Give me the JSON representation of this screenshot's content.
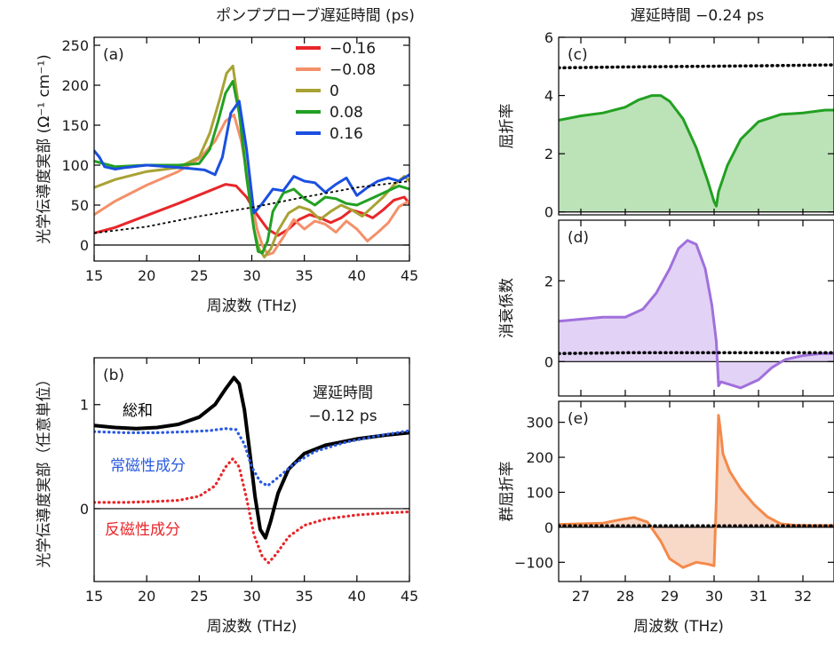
{
  "figure": {
    "title_left": "ポンププローブ遅延時間 (ps)",
    "title_right": "遅延時間 −0.24 ps"
  },
  "colors": {
    "red": "#e8262a",
    "salmon": "#f4906a",
    "olive": "#a8a234",
    "green": "#22a022",
    "blue": "#1a4fe0",
    "purple": "#a070dc",
    "orange": "#f4894a",
    "dotted_blue": "#2a5ae0",
    "dotted_red": "#e8262a",
    "fill_green": "#b8e0b4",
    "fill_purple": "#e0d0f4",
    "fill_orange": "#f8d6c4"
  },
  "chart_data": [
    {
      "id": "a",
      "type": "line",
      "panel_label": "(a)",
      "xlabel": "周波数 (THz)",
      "ylabel": "光学伝導度実部 (Ω⁻¹ cm⁻¹)",
      "xlim": [
        15,
        45
      ],
      "ylim": [
        -20,
        260
      ],
      "xticks": [
        15,
        20,
        25,
        30,
        35,
        40,
        45
      ],
      "yticks": [
        0,
        50,
        100,
        150,
        200,
        250
      ],
      "legend": "top-center",
      "series": [
        {
          "name": "−0.16",
          "color": "red",
          "x": [
            15,
            17,
            20,
            23,
            26,
            27.5,
            28.5,
            29.5,
            30.5,
            31.5,
            32.5,
            33.5,
            34.5,
            35.5,
            36.5,
            37.5,
            38.5,
            39.5,
            40.5,
            41.5,
            42.5,
            43.5,
            44.5,
            45
          ],
          "y": [
            15,
            22,
            37,
            52,
            68,
            76,
            74,
            60,
            38,
            20,
            12,
            20,
            32,
            38,
            34,
            28,
            34,
            44,
            40,
            34,
            44,
            56,
            60,
            52
          ]
        },
        {
          "name": "−0.08",
          "color": "salmon",
          "x": [
            15,
            17,
            20,
            23,
            25,
            26.5,
            27.5,
            28.3,
            29,
            29.8,
            30.5,
            31,
            31.5,
            32,
            33,
            34,
            35,
            36,
            37,
            38,
            39,
            40,
            41,
            42,
            43,
            44,
            45
          ],
          "y": [
            38,
            55,
            75,
            92,
            108,
            130,
            155,
            163,
            130,
            70,
            20,
            0,
            -12,
            -10,
            10,
            32,
            20,
            30,
            26,
            16,
            30,
            20,
            5,
            16,
            28,
            48,
            55
          ]
        },
        {
          "name": "0",
          "color": "olive",
          "x": [
            15,
            17,
            20,
            23,
            25,
            26,
            27,
            27.6,
            28.2,
            28.8,
            29.5,
            30.2,
            30.7,
            31.2,
            31.8,
            32.5,
            33.5,
            34.5,
            35.5,
            36.5,
            37.5,
            38.5,
            39.5,
            40.5,
            41.5,
            42.5,
            43.5,
            44.5,
            45
          ],
          "y": [
            72,
            82,
            92,
            97,
            110,
            140,
            185,
            215,
            224,
            170,
            90,
            20,
            -5,
            -15,
            -5,
            18,
            40,
            48,
            44,
            32,
            42,
            50,
            44,
            36,
            48,
            60,
            75,
            86,
            80
          ]
        },
        {
          "name": "0.08",
          "color": "green",
          "x": [
            15,
            17,
            20,
            23,
            25,
            26,
            26.8,
            27.5,
            28.2,
            28.8,
            29.5,
            30.2,
            30.6,
            31,
            31.5,
            32,
            33,
            34,
            35,
            36,
            37,
            38,
            39,
            40,
            41,
            42,
            43,
            44,
            45
          ],
          "y": [
            105,
            98,
            100,
            100,
            102,
            120,
            155,
            190,
            205,
            165,
            85,
            20,
            -8,
            -10,
            5,
            42,
            65,
            70,
            58,
            50,
            60,
            58,
            52,
            50,
            56,
            62,
            68,
            74,
            70
          ]
        },
        {
          "name": "0.16",
          "color": "blue",
          "x": [
            15,
            15.5,
            16,
            17,
            18,
            20,
            22,
            24,
            25.5,
            26.5,
            27.2,
            28,
            28.8,
            29.5,
            30.2,
            31,
            32,
            33,
            34,
            35,
            36,
            37,
            38,
            39,
            40,
            41,
            42,
            43,
            44,
            45
          ],
          "y": [
            118,
            110,
            98,
            95,
            97,
            100,
            98,
            96,
            94,
            88,
            110,
            165,
            180,
            120,
            40,
            52,
            70,
            68,
            86,
            80,
            78,
            66,
            76,
            84,
            62,
            72,
            80,
            84,
            80,
            88
          ]
        },
        {
          "name": "",
          "color": "black",
          "style": "dotted",
          "x": [
            15,
            20,
            25,
            30,
            35,
            40,
            45
          ],
          "y": [
            15,
            23,
            36,
            47,
            60,
            72,
            80
          ]
        }
      ]
    },
    {
      "id": "b",
      "type": "line",
      "panel_label": "(b)",
      "xlabel": "周波数 (THz)",
      "ylabel": "光学伝導度実部（任意単位）",
      "xlim": [
        15,
        45
      ],
      "ylim": [
        -0.7,
        1.45
      ],
      "xticks": [
        15,
        20,
        25,
        30,
        35,
        40,
        45
      ],
      "yticks": [
        0,
        1
      ],
      "annotation": [
        "遅延時間",
        "−0.12 ps"
      ],
      "series": [
        {
          "name": "総和",
          "color": "black",
          "style": "solid",
          "x": [
            15,
            17,
            19,
            21,
            23,
            25,
            26.5,
            27.5,
            28.3,
            28.8,
            29.3,
            29.8,
            30.3,
            30.8,
            31.3,
            31.8,
            32.5,
            33.5,
            35,
            37,
            40,
            43,
            45
          ],
          "y": [
            0.8,
            0.78,
            0.77,
            0.78,
            0.81,
            0.88,
            1.0,
            1.15,
            1.26,
            1.2,
            0.95,
            0.55,
            0.12,
            -0.2,
            -0.28,
            -0.12,
            0.15,
            0.38,
            0.53,
            0.61,
            0.67,
            0.71,
            0.73
          ]
        },
        {
          "name": "常磁性成分",
          "color": "dotted_blue",
          "style": "dotted",
          "x": [
            15,
            18,
            21,
            24,
            26,
            27.5,
            28.5,
            29.3,
            30,
            30.8,
            31.5,
            32.5,
            34,
            36,
            39,
            42,
            45
          ],
          "y": [
            0.74,
            0.73,
            0.73,
            0.74,
            0.75,
            0.77,
            0.76,
            0.62,
            0.4,
            0.26,
            0.22,
            0.3,
            0.43,
            0.55,
            0.64,
            0.7,
            0.75
          ]
        },
        {
          "name": "反磁性成分",
          "color": "dotted_red",
          "style": "dotted",
          "x": [
            15,
            18,
            21,
            23,
            25,
            26.5,
            27.5,
            28.2,
            28.8,
            29.5,
            30.2,
            31,
            31.6,
            32.3,
            33.5,
            35,
            37,
            40,
            43,
            45
          ],
          "y": [
            0.06,
            0.06,
            0.07,
            0.08,
            0.12,
            0.22,
            0.4,
            0.48,
            0.4,
            0.1,
            -0.25,
            -0.46,
            -0.52,
            -0.44,
            -0.27,
            -0.16,
            -0.1,
            -0.06,
            -0.04,
            -0.03
          ]
        }
      ]
    },
    {
      "id": "c",
      "type": "area",
      "panel_label": "(c)",
      "ylabel": "屈折率",
      "xlim": [
        26.5,
        32.7
      ],
      "ylim": [
        -0.1,
        6
      ],
      "yticks": [
        0,
        2,
        4,
        6
      ],
      "series": [
        {
          "name": "",
          "color": "green",
          "fill": "fill_green",
          "x": [
            26.5,
            27,
            27.5,
            28,
            28.3,
            28.6,
            28.8,
            29,
            29.3,
            29.6,
            29.85,
            30.0,
            30.05,
            30.1,
            30.3,
            30.6,
            31,
            31.5,
            32,
            32.5,
            32.7
          ],
          "y": [
            3.15,
            3.3,
            3.4,
            3.6,
            3.85,
            4.0,
            4.0,
            3.8,
            3.2,
            2.2,
            1.1,
            0.35,
            0.2,
            0.7,
            1.6,
            2.5,
            3.1,
            3.35,
            3.4,
            3.5,
            3.5
          ]
        },
        {
          "name": "",
          "color": "black",
          "style": "dotted",
          "x": [
            26.5,
            28,
            29.5,
            31,
            32.7
          ],
          "y": [
            4.95,
            4.98,
            5.0,
            5.02,
            5.05
          ]
        }
      ]
    },
    {
      "id": "d",
      "type": "area",
      "panel_label": "(d)",
      "ylabel": "消衰係数",
      "xlim": [
        26.5,
        32.7
      ],
      "ylim": [
        -0.85,
        3.5
      ],
      "yticks": [
        0,
        2
      ],
      "series": [
        {
          "name": "",
          "color": "purple",
          "fill": "fill_purple",
          "x": [
            26.5,
            27,
            27.5,
            28,
            28.4,
            28.7,
            29,
            29.2,
            29.4,
            29.6,
            29.8,
            29.95,
            30.05,
            30.1,
            30.15,
            30.3,
            30.6,
            31,
            31.3,
            31.6,
            32,
            32.4,
            32.7
          ],
          "y": [
            1.0,
            1.05,
            1.1,
            1.1,
            1.3,
            1.7,
            2.3,
            2.8,
            3.0,
            2.9,
            2.3,
            1.4,
            0.5,
            -0.6,
            -0.5,
            -0.55,
            -0.65,
            -0.45,
            -0.15,
            0.05,
            0.15,
            0.2,
            0.2
          ]
        },
        {
          "name": "",
          "color": "black",
          "style": "dotted",
          "x": [
            26.5,
            28,
            29.5,
            31,
            32.7
          ],
          "y": [
            0.2,
            0.22,
            0.22,
            0.22,
            0.22
          ]
        }
      ]
    },
    {
      "id": "e",
      "type": "area",
      "panel_label": "(e)",
      "xlabel": "周波数 (THz)",
      "ylabel": "群屈折率",
      "xlim": [
        26.5,
        32.7
      ],
      "ylim": [
        -155,
        360
      ],
      "xticks": [
        27,
        28,
        29,
        30,
        31,
        32
      ],
      "yticks": [
        -100,
        0,
        100,
        200,
        300
      ],
      "series": [
        {
          "name": "",
          "color": "orange",
          "fill": "fill_orange",
          "x": [
            26.5,
            27,
            27.5,
            27.9,
            28.2,
            28.5,
            28.8,
            29.0,
            29.3,
            29.6,
            29.85,
            30.0,
            30.05,
            30.1,
            30.15,
            30.2,
            30.35,
            30.6,
            30.9,
            31.2,
            31.5,
            31.8,
            32.2,
            32.7
          ],
          "y": [
            8,
            10,
            12,
            22,
            28,
            15,
            -40,
            -90,
            -115,
            -100,
            -105,
            -110,
            80,
            320,
            270,
            210,
            160,
            110,
            65,
            30,
            10,
            6,
            5,
            5
          ]
        },
        {
          "name": "",
          "color": "black",
          "style": "dotted",
          "x": [
            26.5,
            28,
            29.5,
            31,
            32.7
          ],
          "y": [
            4,
            4,
            4,
            4,
            4
          ]
        }
      ]
    }
  ]
}
